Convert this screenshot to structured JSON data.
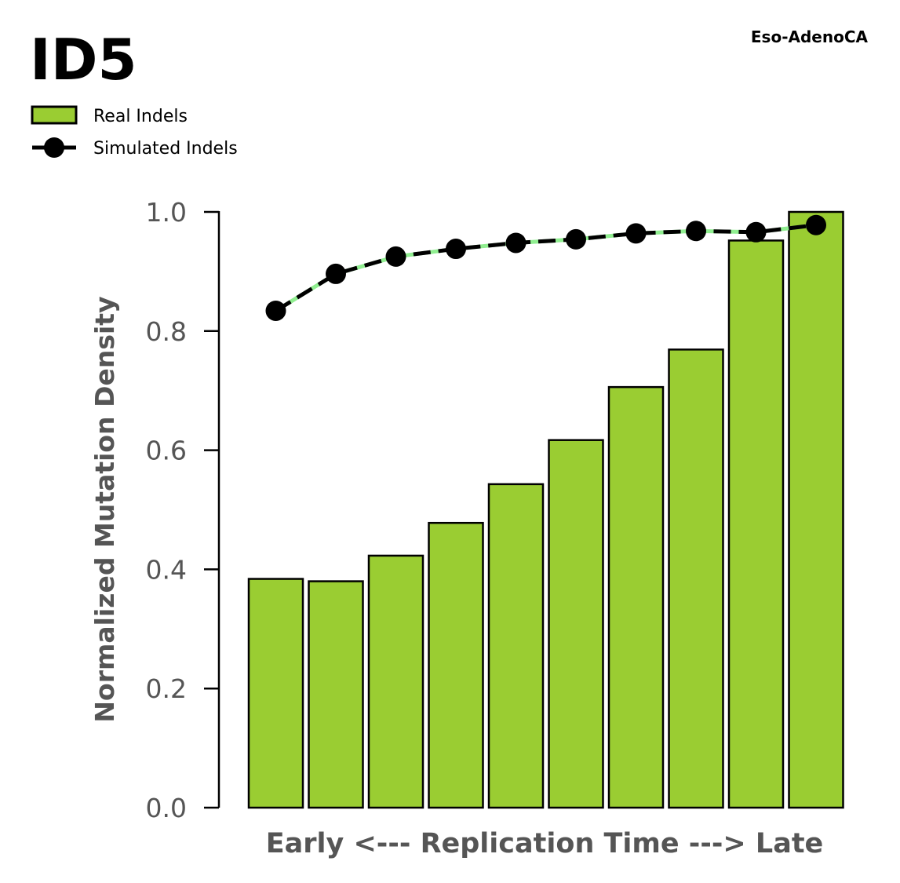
{
  "chart_data": {
    "type": "bar",
    "title": "ID5",
    "subtitle": "Eso-AdenoCA",
    "xlabel": "Early <--- Replication Time ---> Late",
    "ylabel": "Normalized Mutation Density",
    "ylim": [
      0,
      1
    ],
    "yticks": [
      "0.0",
      "0.2",
      "0.4",
      "0.6",
      "0.8",
      "1.0"
    ],
    "grid": false,
    "legend_position": "top-left",
    "bar_color": "#9ACD32",
    "line_color": "#000000",
    "line_dash_color": "#90EE90",
    "series": [
      {
        "name": "Real Indels",
        "kind": "bar",
        "values": [
          0.384,
          0.38,
          0.423,
          0.478,
          0.543,
          0.617,
          0.706,
          0.769,
          0.952,
          1.0
        ]
      },
      {
        "name": "Simulated Indels",
        "kind": "line",
        "values": [
          0.834,
          0.896,
          0.925,
          0.938,
          0.948,
          0.954,
          0.964,
          0.968,
          0.966,
          0.978
        ]
      }
    ]
  }
}
